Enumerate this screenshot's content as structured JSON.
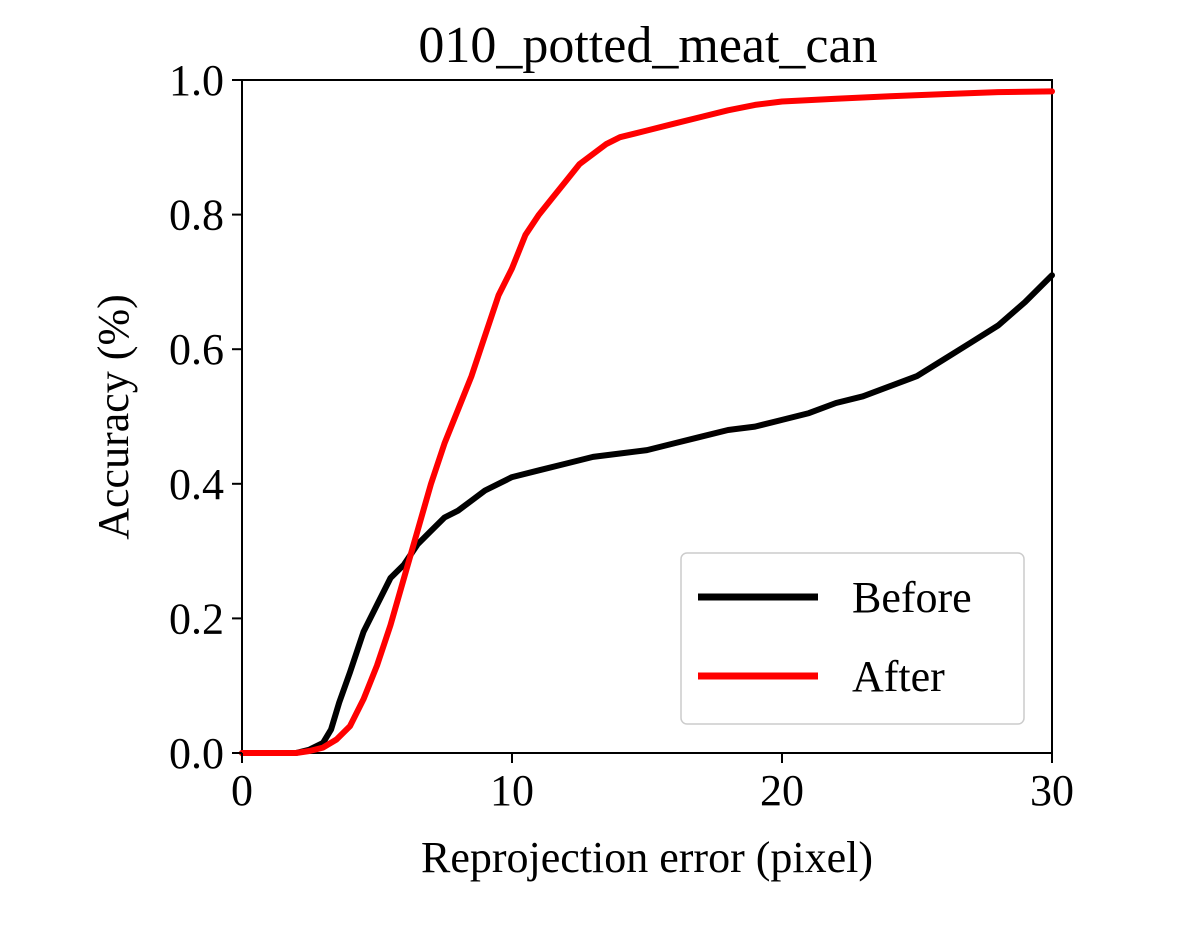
{
  "chart_data": {
    "type": "line",
    "title": "010_potted_meat_can",
    "xlabel": "Reprojection error (pixel)",
    "ylabel": "Accuracy (%)",
    "xlim": [
      0,
      30
    ],
    "ylim": [
      0,
      1
    ],
    "xticks": [
      0,
      10,
      20,
      30
    ],
    "xtick_labels": [
      "0",
      "10",
      "20",
      "30"
    ],
    "yticks": [
      0.0,
      0.2,
      0.4,
      0.6,
      0.8,
      1.0
    ],
    "ytick_labels": [
      "0.0",
      "0.2",
      "0.4",
      "0.6",
      "0.8",
      "1.0"
    ],
    "grid": false,
    "legend_position": "lower-right",
    "series": [
      {
        "name": "Before",
        "color": "#000000",
        "x": [
          0,
          1,
          2,
          2.5,
          3.0,
          3.3,
          3.6,
          4.0,
          4.5,
          5.0,
          5.5,
          6.0,
          6.5,
          7.0,
          7.5,
          8.0,
          8.5,
          9.0,
          9.5,
          10.0,
          11,
          12,
          13,
          14,
          15,
          16,
          17,
          18,
          19,
          20,
          21,
          22,
          23,
          24,
          25,
          26,
          27,
          28,
          29,
          30
        ],
        "y": [
          0.0,
          0.0,
          0.0,
          0.005,
          0.015,
          0.035,
          0.075,
          0.12,
          0.18,
          0.22,
          0.26,
          0.28,
          0.31,
          0.33,
          0.35,
          0.36,
          0.375,
          0.39,
          0.4,
          0.41,
          0.42,
          0.43,
          0.44,
          0.445,
          0.45,
          0.46,
          0.47,
          0.48,
          0.485,
          0.495,
          0.505,
          0.52,
          0.53,
          0.545,
          0.56,
          0.585,
          0.61,
          0.635,
          0.67,
          0.71
        ]
      },
      {
        "name": "After",
        "color": "#ff0000",
        "x": [
          0,
          1,
          2,
          2.5,
          3.0,
          3.5,
          4.0,
          4.5,
          5.0,
          5.5,
          6.0,
          6.5,
          7.0,
          7.5,
          8.0,
          8.5,
          9.0,
          9.5,
          10.0,
          10.5,
          11.0,
          11.5,
          12.0,
          12.5,
          13.0,
          13.5,
          14,
          15,
          16,
          17,
          18,
          19,
          20,
          22,
          24,
          26,
          28,
          30
        ],
        "y": [
          0.0,
          0.0,
          0.0,
          0.003,
          0.008,
          0.02,
          0.04,
          0.08,
          0.13,
          0.19,
          0.26,
          0.33,
          0.4,
          0.46,
          0.51,
          0.56,
          0.62,
          0.68,
          0.72,
          0.77,
          0.8,
          0.825,
          0.85,
          0.875,
          0.89,
          0.905,
          0.915,
          0.925,
          0.935,
          0.945,
          0.955,
          0.963,
          0.968,
          0.972,
          0.976,
          0.979,
          0.982,
          0.983
        ]
      }
    ]
  }
}
